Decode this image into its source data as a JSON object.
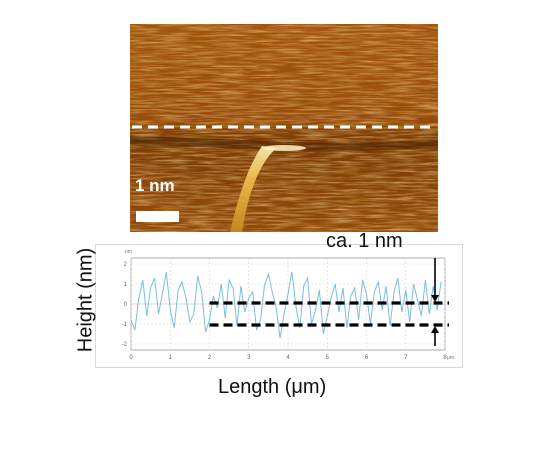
{
  "scale_bar_label": "1 nm",
  "annotation": "ca. 1 nm",
  "colors": {
    "afm_dark": "#5a2800",
    "afm_mid": "#a85a0c",
    "afm_light": "#e9a845",
    "trace": "#7bbde0",
    "dashes": "#000000"
  },
  "chart_data": {
    "type": "line",
    "xlabel": "Length (μm)",
    "ylabel": "Height (nm)",
    "x_unit_tick": "μm",
    "y_unit": "nm",
    "xlim": [
      0,
      8
    ],
    "ylim": [
      -2.3,
      2.3
    ],
    "x_ticks": [
      "0",
      "1",
      "2",
      "3",
      "4",
      "5",
      "6",
      "7",
      "8"
    ],
    "y_ticks": [
      "2",
      "1",
      "0",
      "-1",
      "-2"
    ],
    "grid": true,
    "reference_levels": [
      {
        "from_x": 2.0,
        "to_x": 8.0,
        "y": 0.05
      },
      {
        "from_x": 2.0,
        "to_x": 8.0,
        "y": -1.05
      }
    ],
    "series": [
      {
        "x": [
          0,
          0.1,
          0.2,
          0.3,
          0.4,
          0.5,
          0.6,
          0.7,
          0.8,
          0.9,
          1.0,
          1.1,
          1.2,
          1.3,
          1.4,
          1.5,
          1.6,
          1.7,
          1.8,
          1.9,
          2.0,
          2.1,
          2.2,
          2.3,
          2.4,
          2.5,
          2.6,
          2.7,
          2.8,
          2.9,
          3.0,
          3.1,
          3.2,
          3.3,
          3.4,
          3.5,
          3.6,
          3.7,
          3.8,
          3.9,
          4.0,
          4.1,
          4.2,
          4.3,
          4.4,
          4.5,
          4.6,
          4.7,
          4.8,
          4.9,
          5.0,
          5.1,
          5.2,
          5.3,
          5.4,
          5.5,
          5.6,
          5.7,
          5.8,
          5.9,
          6.0,
          6.1,
          6.2,
          6.3,
          6.4,
          6.5,
          6.6,
          6.7,
          6.8,
          6.9,
          7.0,
          7.1,
          7.2,
          7.3,
          7.4,
          7.5,
          7.6,
          7.7,
          7.8,
          7.9
        ],
        "y": [
          -0.8,
          -1.3,
          0.3,
          1.2,
          -0.6,
          0.8,
          1.3,
          -0.5,
          0.5,
          1.6,
          -0.3,
          -1.2,
          0.7,
          1.1,
          0.3,
          -0.9,
          -0.5,
          1.4,
          0.6,
          -1.4,
          -0.8,
          0.4,
          -0.2,
          1.0,
          -0.7,
          1.2,
          0.8,
          -1.1,
          0.9,
          -0.4,
          0.3,
          0.6,
          -1.3,
          -0.8,
          0.9,
          1.5,
          0.6,
          -0.2,
          -1.7,
          -0.5,
          0.5,
          1.6,
          -0.1,
          -1.2,
          0.9,
          1.3,
          -1.0,
          -0.3,
          0.7,
          -1.5,
          -0.6,
          0.3,
          1.0,
          -0.4,
          0.8,
          -1.2,
          0.4,
          0.8,
          -0.8,
          1.2,
          0.5,
          -1.0,
          0.6,
          1.1,
          -0.3,
          0.9,
          -1.1,
          0.6,
          1.3,
          -0.4,
          0.7,
          -0.9,
          1.0,
          0.2,
          -0.6,
          1.2,
          -0.5,
          0.9,
          -0.3,
          1.1
        ]
      }
    ]
  }
}
